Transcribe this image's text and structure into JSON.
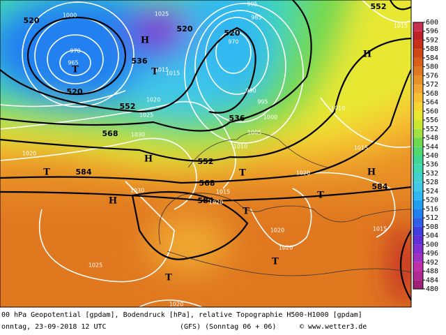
{
  "map_labels": {
    "geopotential": [
      520,
      520,
      520,
      520,
      536,
      552,
      568,
      552,
      568,
      584,
      584,
      536,
      584,
      552
    ],
    "pressure": [
      1000,
      1025,
      995,
      985,
      970,
      970,
      965,
      1015,
      1015,
      1020,
      1025,
      1030,
      990,
      995,
      1000,
      1005,
      1010,
      1015,
      1010,
      1015,
      1020,
      1030,
      1015,
      1020,
      1020,
      1020,
      1020,
      1015,
      1025,
      1020
    ],
    "centers": [
      "H",
      "T",
      "H",
      "H",
      "T",
      "T",
      "H",
      "T",
      "H",
      "T",
      "T",
      "T",
      "T"
    ]
  },
  "colorbar": {
    "ticks": [
      480,
      484,
      488,
      492,
      496,
      500,
      504,
      508,
      512,
      516,
      520,
      524,
      528,
      532,
      536,
      540,
      544,
      548,
      552,
      556,
      560,
      564,
      568,
      572,
      576,
      580,
      584,
      588,
      592,
      596,
      600
    ],
    "colors": [
      "#a0207a",
      "#b02890",
      "#c030a8",
      "#a030c0",
      "#8030d0",
      "#6030d8",
      "#4040e0",
      "#3060e8",
      "#2080f0",
      "#20a0f0",
      "#30b8f0",
      "#40c8e8",
      "#40d0d0",
      "#40d8b0",
      "#40d890",
      "#50d870",
      "#70d850",
      "#a0e040",
      "#c8e830",
      "#e8e830",
      "#f8d830",
      "#f8c030",
      "#f0a830",
      "#e89028",
      "#e07820",
      "#d86018",
      "#d04818",
      "#c83018",
      "#c02028",
      "#c83050"
    ]
  },
  "footer": {
    "description": "00 hPa Geopotential [gpdam], Bodendruck [hPa], relative Topographie H500-H1000 [gpdam]",
    "date": "onntag, 23-09-2018  12 UTC",
    "model": "(GFS)  (Sonntag 06 + 06)",
    "credit": "© www.wetter3.de"
  }
}
